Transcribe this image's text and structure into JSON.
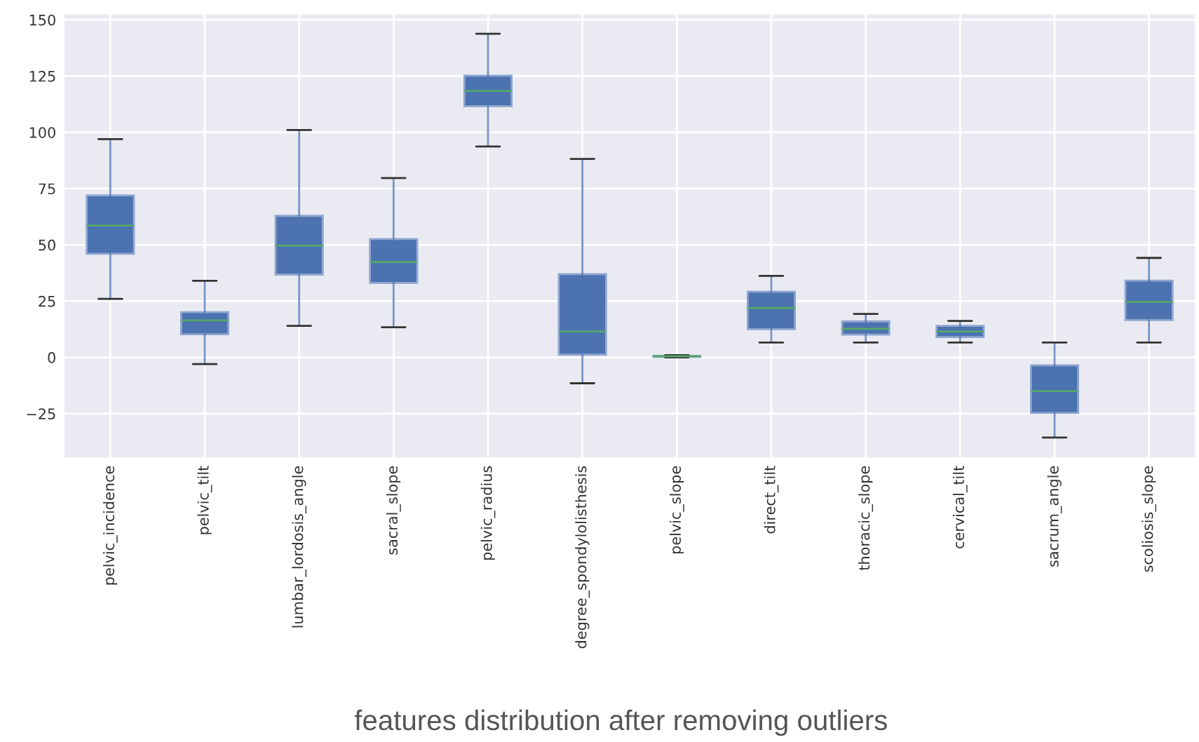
{
  "chart_data": {
    "type": "box",
    "categories": [
      "pelvic_incidence",
      "pelvic_tilt",
      "lumbar_lordosis_angle",
      "sacral_slope",
      "pelvic_radius",
      "degree_spondylolisthesis",
      "pelvic_slope",
      "direct_tilt",
      "thoracic_slope",
      "cervical_tilt",
      "sacrum_angle",
      "scoliosis_slope"
    ],
    "boxes": [
      {
        "low": 26,
        "q1": 46,
        "median": 58.6,
        "q3": 72,
        "high": 97
      },
      {
        "low": -3,
        "q1": 10.3,
        "median": 16.4,
        "q3": 20.1,
        "high": 34
      },
      {
        "low": 14,
        "q1": 36.8,
        "median": 49.7,
        "q3": 62.9,
        "high": 101
      },
      {
        "low": 13.4,
        "q1": 33.1,
        "median": 42.4,
        "q3": 52.6,
        "high": 79.7
      },
      {
        "low": 93.7,
        "q1": 111.6,
        "median": 118.4,
        "q3": 125.2,
        "high": 143.8
      },
      {
        "low": -11.5,
        "q1": 1.2,
        "median": 11.5,
        "q3": 37,
        "high": 88.2
      },
      {
        "low": 0,
        "q1": 0.2,
        "median": 0.5,
        "q3": 0.7,
        "high": 1
      },
      {
        "low": 6.6,
        "q1": 12.5,
        "median": 22,
        "q3": 29.2,
        "high": 36.2
      },
      {
        "low": 6.6,
        "q1": 10.1,
        "median": 12.7,
        "q3": 16,
        "high": 19.3
      },
      {
        "low": 6.6,
        "q1": 9,
        "median": 11.5,
        "q3": 14,
        "high": 16.2
      },
      {
        "low": -35.6,
        "q1": -24.7,
        "median": -15,
        "q3": -3.5,
        "high": 6.6
      },
      {
        "low": 6.6,
        "q1": 16.6,
        "median": 24.7,
        "q3": 34.1,
        "high": 44.2
      }
    ],
    "color": "#4c72b0",
    "ylim": [
      -45,
      153
    ],
    "yticks": [
      {
        "value": -25,
        "label": "−25"
      },
      0,
      25,
      50,
      75,
      100,
      125,
      150
    ],
    "grid": true,
    "annotations": [
      "features distribution after removing outliers"
    ]
  }
}
